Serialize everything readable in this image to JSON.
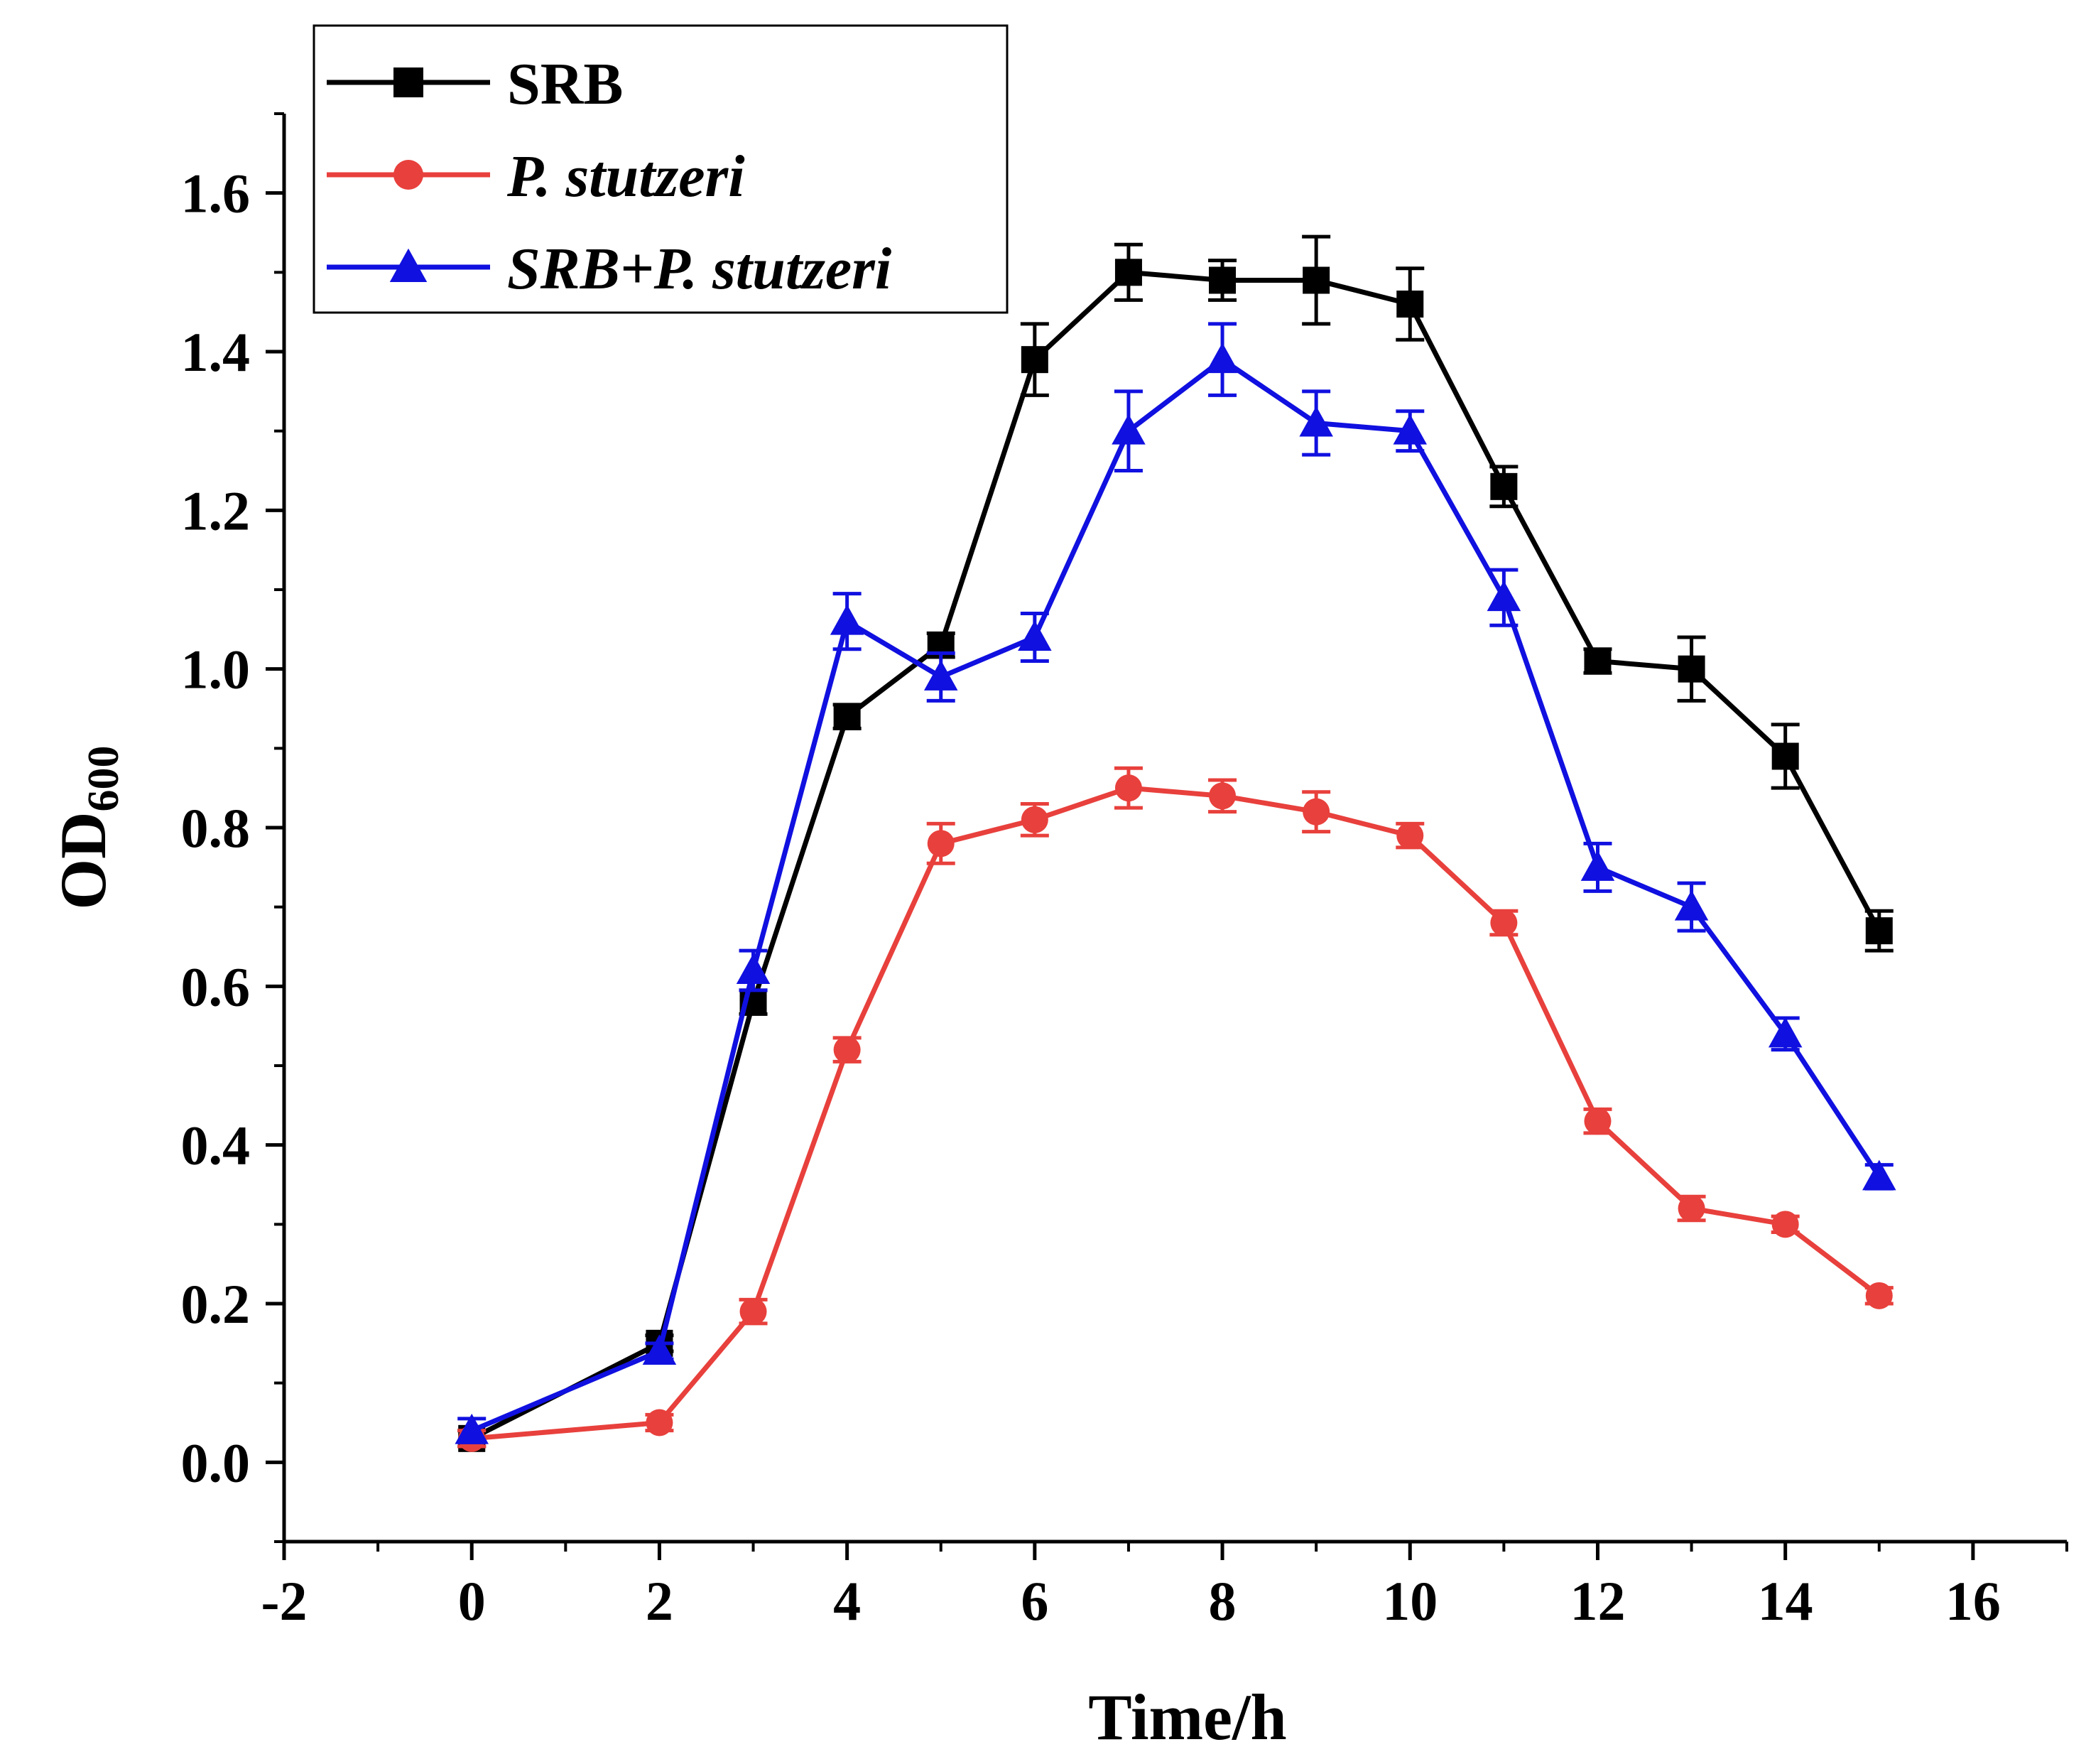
{
  "chart_data": {
    "type": "line",
    "xlabel": "Time/h",
    "ylabel_main": "OD",
    "ylabel_sub": "600",
    "xlim": [
      -2,
      17
    ],
    "ylim": [
      -0.1,
      1.7
    ],
    "x_ticks": [
      -2,
      0,
      2,
      4,
      6,
      8,
      10,
      12,
      14,
      16
    ],
    "y_ticks": [
      0.0,
      0.2,
      0.4,
      0.6,
      0.8,
      1.0,
      1.2,
      1.4,
      1.6
    ],
    "x_tick_labels": [
      "-2",
      "0",
      "2",
      "4",
      "6",
      "8",
      "10",
      "12",
      "14",
      "16"
    ],
    "y_tick_labels": [
      "0.0",
      "0.2",
      "0.4",
      "0.6",
      "0.8",
      "1.0",
      "1.2",
      "1.4",
      "1.6"
    ],
    "x": [
      0,
      2,
      3,
      4,
      5,
      6,
      7,
      8,
      9,
      10,
      11,
      12,
      13,
      14,
      15
    ],
    "legend_position": "top-left",
    "series": [
      {
        "name": "SRB",
        "italic": false,
        "color": "#000000",
        "marker": "square",
        "values": [
          0.03,
          0.15,
          0.58,
          0.94,
          1.03,
          1.39,
          1.5,
          1.49,
          1.49,
          1.46,
          1.23,
          1.01,
          1.0,
          0.89,
          0.67
        ],
        "errors": [
          0.01,
          0.01,
          0.015,
          0.015,
          0.015,
          0.045,
          0.035,
          0.025,
          0.055,
          0.045,
          0.025,
          0.015,
          0.04,
          0.04,
          0.025
        ]
      },
      {
        "name": "P. stutzeri",
        "italic": true,
        "color": "#e8403c",
        "marker": "circle",
        "values": [
          0.03,
          0.05,
          0.19,
          0.52,
          0.78,
          0.81,
          0.85,
          0.84,
          0.82,
          0.79,
          0.68,
          0.43,
          0.32,
          0.3,
          0.21
        ],
        "errors": [
          0.01,
          0.01,
          0.015,
          0.015,
          0.025,
          0.02,
          0.025,
          0.02,
          0.025,
          0.015,
          0.015,
          0.015,
          0.015,
          0.01,
          0.01
        ]
      },
      {
        "name": "SRB+P. stutzeri",
        "italic": true,
        "color": "#1010e0",
        "marker": "triangle",
        "values": [
          0.04,
          0.14,
          0.62,
          1.06,
          0.99,
          1.04,
          1.3,
          1.39,
          1.31,
          1.3,
          1.09,
          0.75,
          0.7,
          0.54,
          0.36
        ],
        "errors": [
          0.015,
          0.01,
          0.025,
          0.035,
          0.03,
          0.03,
          0.05,
          0.045,
          0.04,
          0.025,
          0.035,
          0.03,
          0.03,
          0.02,
          0.015
        ]
      }
    ]
  }
}
